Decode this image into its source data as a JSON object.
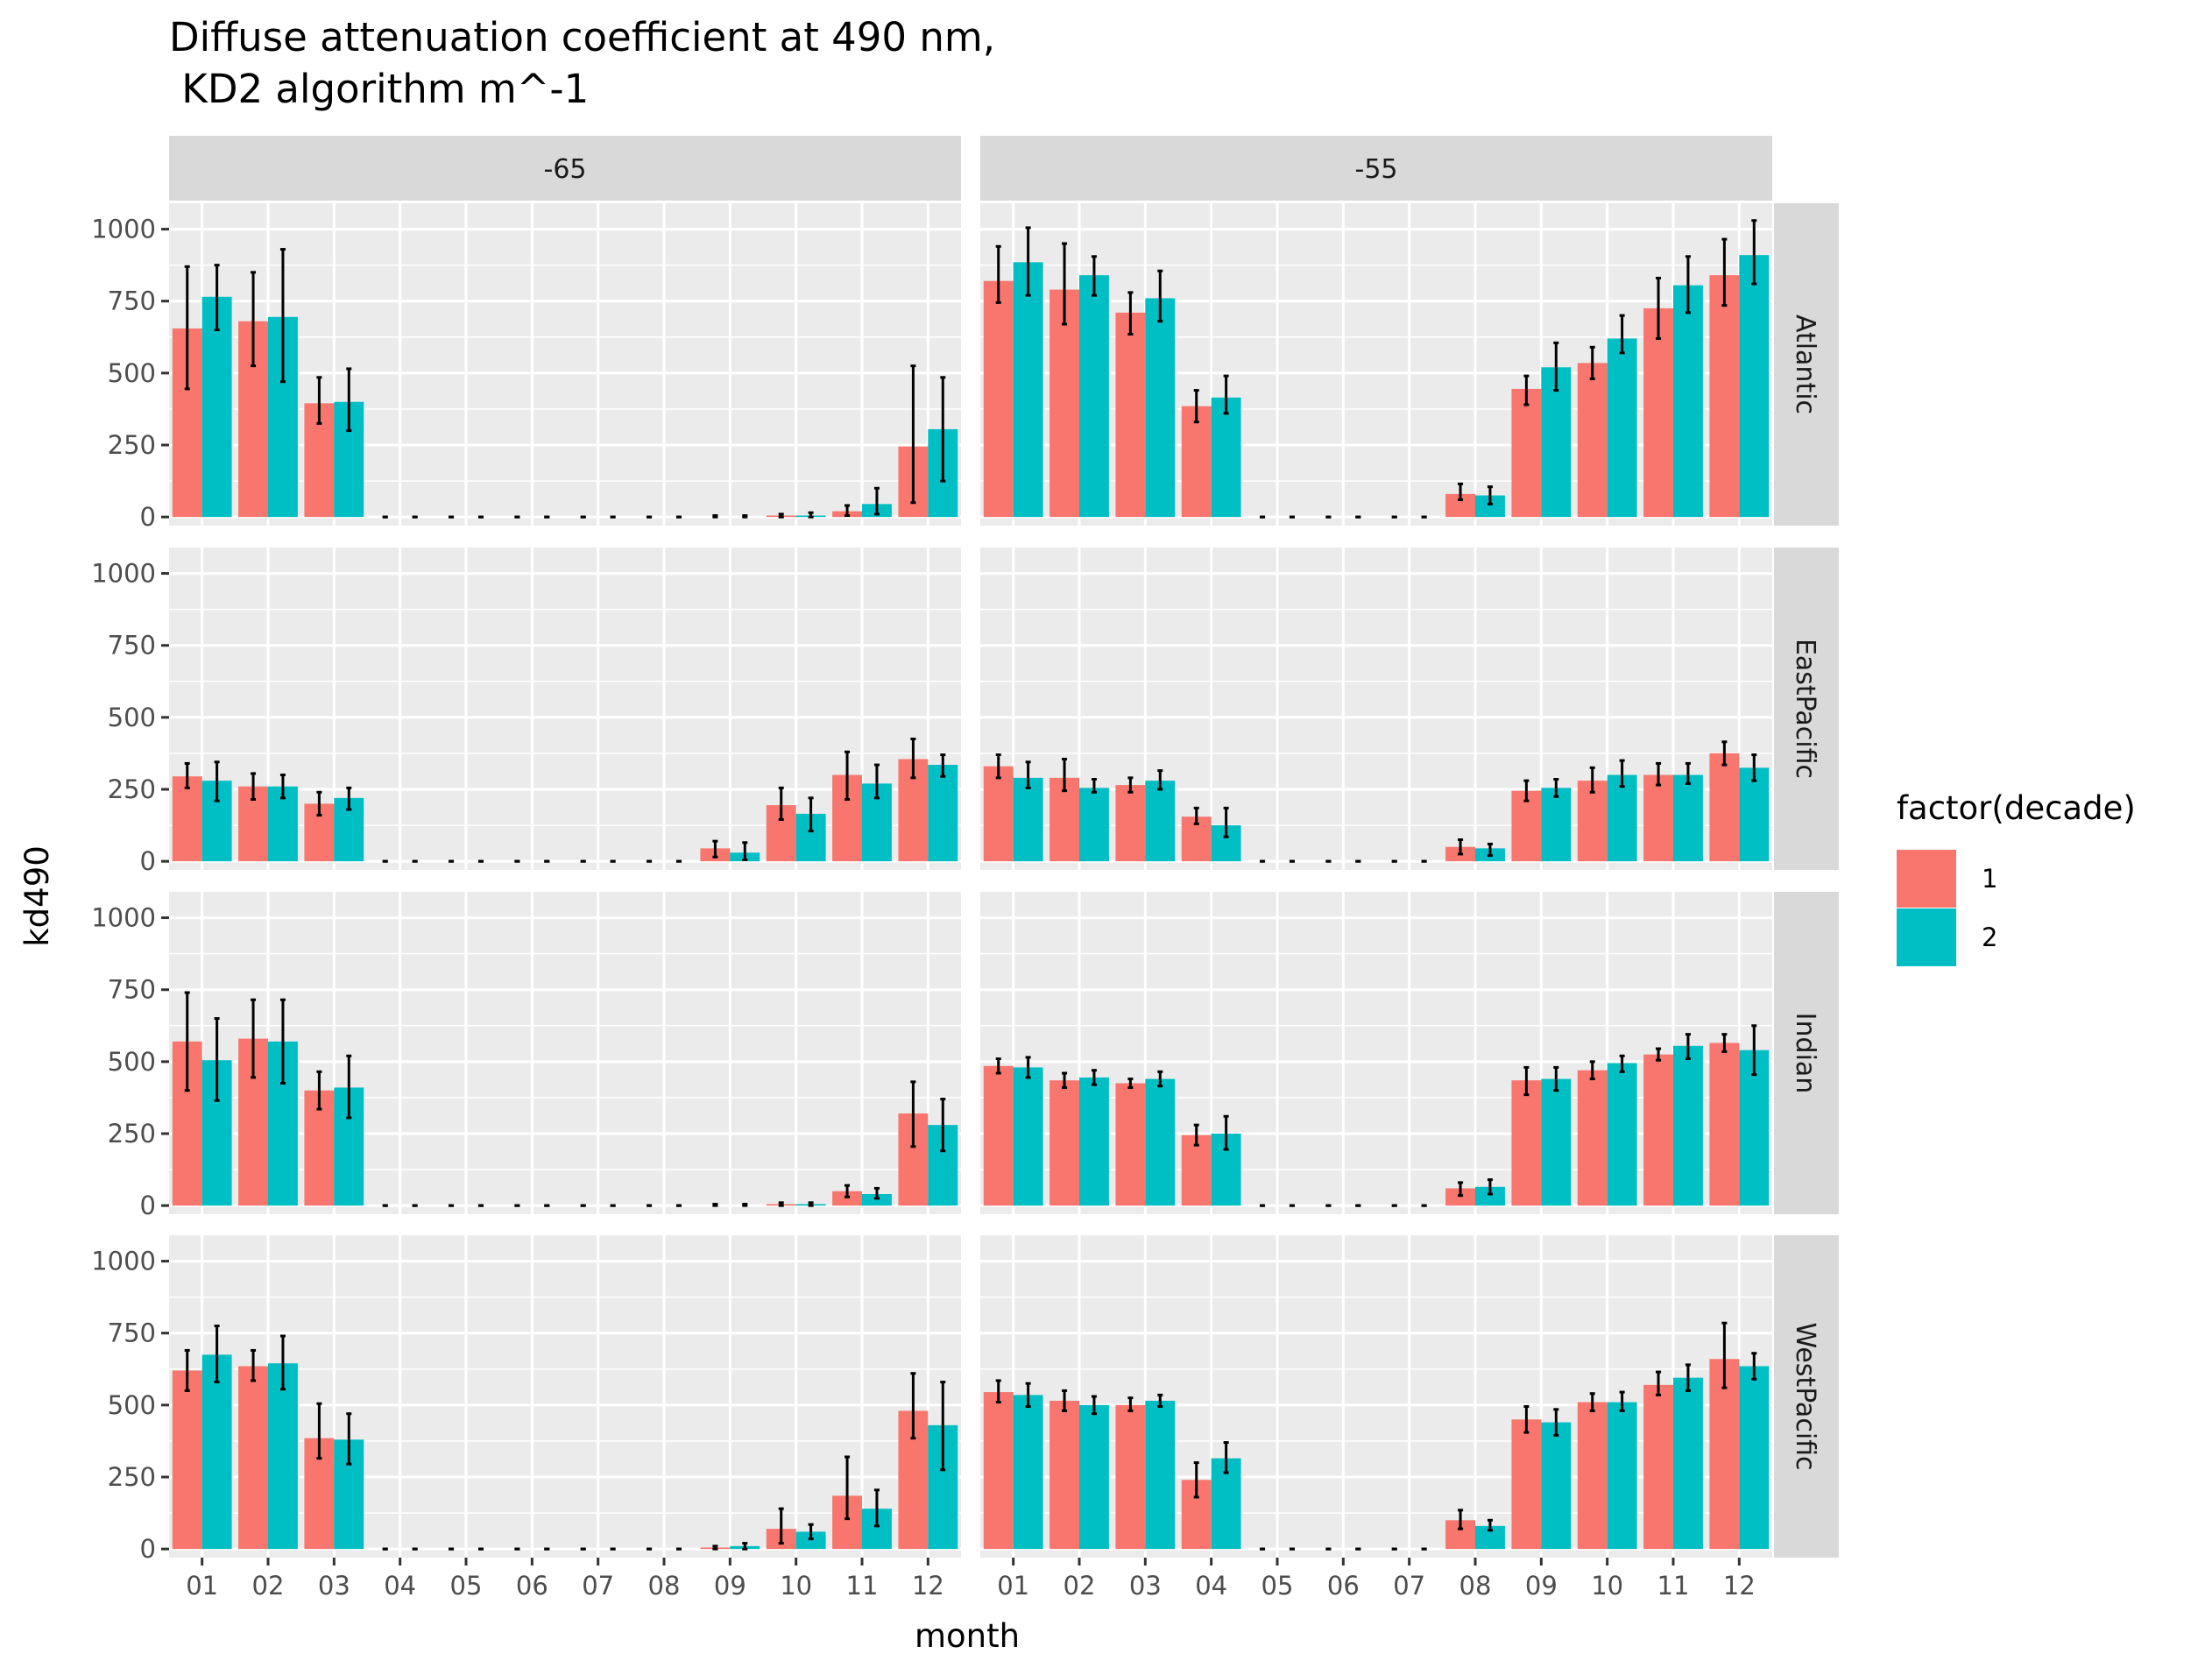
{
  "chart_data": {
    "type": "bar",
    "title_lines": [
      "Diffuse attenuation coefficient at 490 nm,",
      " KD2 algorithm m^-1"
    ],
    "xlabel": "month",
    "ylabel": "kd490",
    "ylim": [
      -30,
      1090
    ],
    "yticks": [
      0,
      250,
      500,
      750,
      1000
    ],
    "ytick_labels": [
      "0",
      "250",
      "500",
      "750",
      "1000"
    ],
    "categories": [
      "01",
      "02",
      "03",
      "04",
      "05",
      "06",
      "07",
      "08",
      "09",
      "10",
      "11",
      "12"
    ],
    "columns": [
      "-65",
      "-55"
    ],
    "rows": [
      "Atlantic",
      "EastPacific",
      "Indian",
      "WestPacific"
    ],
    "legend": {
      "title": "factor(decade)",
      "position": "right",
      "entries": [
        {
          "label": "1",
          "color": "#F8766D"
        },
        {
          "label": "2",
          "color": "#00BFC4"
        }
      ]
    },
    "panel_background": "#EBEBEB",
    "strip_background": "#D9D9D9",
    "grid": true,
    "error_bars": true,
    "panels": [
      {
        "row": "Atlantic",
        "col": "-65",
        "series": [
          {
            "name": "1",
            "values": [
              655,
              680,
              395,
              0,
              0,
              0,
              0,
              0,
              0,
              5,
              20,
              245
            ],
            "lower": [
              445,
              525,
              325,
              0,
              0,
              0,
              0,
              0,
              0,
              0,
              5,
              50
            ],
            "upper": [
              870,
              850,
              485,
              0,
              0,
              0,
              0,
              0,
              5,
              10,
              40,
              525
            ]
          },
          {
            "name": "2",
            "values": [
              765,
              695,
              400,
              0,
              0,
              0,
              0,
              0,
              0,
              5,
              45,
              305
            ],
            "lower": [
              650,
              470,
              300,
              0,
              0,
              0,
              0,
              0,
              0,
              0,
              10,
              125
            ],
            "upper": [
              875,
              930,
              515,
              0,
              0,
              0,
              0,
              0,
              5,
              15,
              100,
              485
            ]
          }
        ]
      },
      {
        "row": "Atlantic",
        "col": "-55",
        "series": [
          {
            "name": "1",
            "values": [
              820,
              790,
              710,
              385,
              0,
              0,
              0,
              80,
              445,
              535,
              725,
              840
            ],
            "lower": [
              745,
              670,
              635,
              330,
              0,
              0,
              0,
              60,
              390,
              480,
              620,
              735
            ],
            "upper": [
              940,
              950,
              780,
              440,
              0,
              0,
              0,
              115,
              490,
              590,
              830,
              965
            ]
          },
          {
            "name": "2",
            "values": [
              885,
              840,
              760,
              415,
              0,
              0,
              0,
              75,
              520,
              620,
              805,
              910
            ],
            "lower": [
              770,
              770,
              680,
              360,
              0,
              0,
              0,
              45,
              440,
              570,
              710,
              810
            ],
            "upper": [
              1005,
              905,
              855,
              490,
              0,
              0,
              0,
              105,
              605,
              700,
              905,
              1030
            ]
          }
        ]
      },
      {
        "row": "EastPacific",
        "col": "-65",
        "series": [
          {
            "name": "1",
            "values": [
              295,
              260,
              200,
              0,
              0,
              0,
              0,
              0,
              45,
              195,
              300,
              355
            ],
            "lower": [
              255,
              215,
              160,
              0,
              0,
              0,
              0,
              0,
              15,
              145,
              215,
              290
            ],
            "upper": [
              340,
              305,
              240,
              0,
              0,
              0,
              0,
              0,
              70,
              255,
              380,
              425
            ]
          },
          {
            "name": "2",
            "values": [
              280,
              260,
              220,
              0,
              0,
              0,
              0,
              0,
              30,
              165,
              270,
              335
            ],
            "lower": [
              210,
              220,
              180,
              0,
              0,
              0,
              0,
              0,
              5,
              105,
              220,
              295
            ],
            "upper": [
              345,
              300,
              255,
              0,
              0,
              0,
              0,
              0,
              65,
              220,
              335,
              370
            ]
          }
        ]
      },
      {
        "row": "EastPacific",
        "col": "-55",
        "series": [
          {
            "name": "1",
            "values": [
              330,
              290,
              265,
              155,
              0,
              0,
              0,
              50,
              245,
              280,
              300,
              375
            ],
            "lower": [
              290,
              245,
              240,
              130,
              0,
              0,
              0,
              25,
              210,
              240,
              265,
              335
            ],
            "upper": [
              370,
              355,
              290,
              185,
              0,
              0,
              0,
              75,
              280,
              325,
              340,
              415
            ]
          },
          {
            "name": "2",
            "values": [
              290,
              255,
              280,
              125,
              0,
              0,
              0,
              45,
              255,
              300,
              300,
              325
            ],
            "lower": [
              255,
              240,
              250,
              85,
              0,
              0,
              0,
              20,
              225,
              260,
              270,
              280
            ],
            "upper": [
              345,
              285,
              315,
              185,
              0,
              0,
              0,
              60,
              285,
              350,
              340,
              370
            ]
          }
        ]
      },
      {
        "row": "Indian",
        "col": "-65",
        "series": [
          {
            "name": "1",
            "values": [
              570,
              580,
              400,
              0,
              0,
              0,
              0,
              0,
              0,
              5,
              50,
              320
            ],
            "lower": [
              400,
              445,
              335,
              0,
              0,
              0,
              0,
              0,
              0,
              0,
              30,
              205
            ],
            "upper": [
              740,
              715,
              465,
              0,
              0,
              0,
              0,
              0,
              5,
              10,
              70,
              430
            ]
          },
          {
            "name": "2",
            "values": [
              505,
              570,
              410,
              0,
              0,
              0,
              0,
              0,
              0,
              5,
              40,
              280
            ],
            "lower": [
              365,
              425,
              305,
              0,
              0,
              0,
              0,
              0,
              0,
              0,
              25,
              190
            ],
            "upper": [
              650,
              715,
              520,
              0,
              0,
              0,
              0,
              0,
              5,
              10,
              60,
              370
            ]
          }
        ]
      },
      {
        "row": "Indian",
        "col": "-55",
        "series": [
          {
            "name": "1",
            "values": [
              485,
              435,
              425,
              245,
              0,
              0,
              0,
              60,
              435,
              470,
              525,
              565
            ],
            "lower": [
              460,
              410,
              410,
              210,
              0,
              0,
              0,
              35,
              385,
              440,
              505,
              535
            ],
            "upper": [
              510,
              460,
              440,
              280,
              0,
              0,
              0,
              80,
              480,
              500,
              545,
              595
            ]
          },
          {
            "name": "2",
            "values": [
              480,
              445,
              440,
              250,
              0,
              0,
              0,
              65,
              440,
              495,
              555,
              540
            ],
            "lower": [
              445,
              420,
              415,
              195,
              0,
              0,
              0,
              40,
              400,
              465,
              510,
              455
            ],
            "upper": [
              515,
              470,
              465,
              310,
              0,
              0,
              0,
              90,
              480,
              520,
              595,
              625
            ]
          }
        ]
      },
      {
        "row": "WestPacific",
        "col": "-65",
        "series": [
          {
            "name": "1",
            "values": [
              620,
              635,
              385,
              0,
              0,
              0,
              0,
              0,
              5,
              70,
              185,
              480
            ],
            "lower": [
              550,
              585,
              315,
              0,
              0,
              0,
              0,
              0,
              0,
              20,
              105,
              385
            ],
            "upper": [
              690,
              690,
              505,
              0,
              0,
              0,
              0,
              0,
              10,
              140,
              320,
              610
            ]
          },
          {
            "name": "2",
            "values": [
              675,
              645,
              380,
              0,
              0,
              0,
              0,
              0,
              10,
              60,
              140,
              430
            ],
            "lower": [
              580,
              555,
              295,
              0,
              0,
              0,
              0,
              0,
              0,
              35,
              80,
              275
            ],
            "upper": [
              775,
              740,
              470,
              0,
              0,
              0,
              0,
              0,
              20,
              85,
              205,
              580
            ]
          }
        ]
      },
      {
        "row": "WestPacific",
        "col": "-55",
        "series": [
          {
            "name": "1",
            "values": [
              545,
              515,
              500,
              240,
              0,
              0,
              0,
              100,
              450,
              510,
              570,
              660
            ],
            "lower": [
              510,
              480,
              480,
              180,
              0,
              0,
              0,
              70,
              405,
              480,
              535,
              560
            ],
            "upper": [
              585,
              550,
              525,
              300,
              0,
              0,
              0,
              135,
              495,
              540,
              615,
              785
            ]
          },
          {
            "name": "2",
            "values": [
              535,
              500,
              515,
              315,
              0,
              0,
              0,
              80,
              440,
              510,
              595,
              635
            ],
            "lower": [
              495,
              470,
              495,
              265,
              0,
              0,
              0,
              65,
              395,
              480,
              550,
              590
            ],
            "upper": [
              575,
              530,
              535,
              370,
              0,
              0,
              0,
              100,
              485,
              545,
              640,
              680
            ]
          }
        ]
      }
    ]
  }
}
